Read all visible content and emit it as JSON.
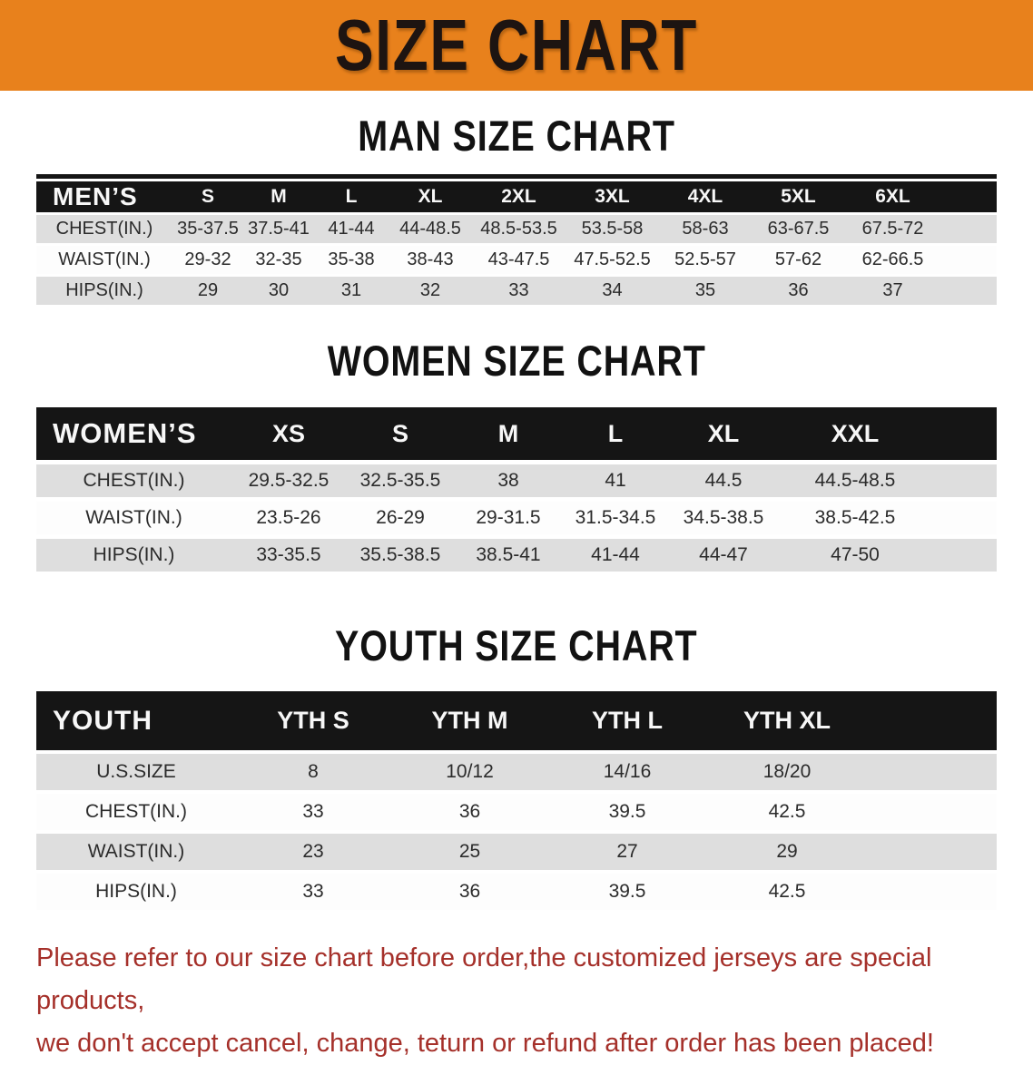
{
  "banner": {
    "title": "SIZE CHART"
  },
  "colors": {
    "banner_bg": "#E8811C",
    "table_header_bg": "#151515",
    "row_stripe_gray": "#DEDEDE",
    "disclaimer_red": "#A5302A"
  },
  "sections": [
    {
      "id": "man",
      "heading": "MAN SIZE CHART",
      "table": {
        "header_label": "MEN’S",
        "columns": [
          "S",
          "M",
          "L",
          "XL",
          "2XL",
          "3XL",
          "4XL",
          "5XL",
          "6XL"
        ],
        "rows": [
          {
            "label": "CHEST(IN.)",
            "values": [
              "35-37.5",
              "37.5-41",
              "41-44",
              "44-48.5",
              "48.5-53.5",
              "53.5-58",
              "58-63",
              "63-67.5",
              "67.5-72"
            ]
          },
          {
            "label": "WAIST(IN.)",
            "values": [
              "29-32",
              "32-35",
              "35-38",
              "38-43",
              "43-47.5",
              "47.5-52.5",
              "52.5-57",
              "57-62",
              "62-66.5"
            ]
          },
          {
            "label": "HIPS(IN.)",
            "values": [
              "29",
              "30",
              "31",
              "32",
              "33",
              "34",
              "35",
              "36",
              "37"
            ]
          }
        ]
      }
    },
    {
      "id": "women",
      "heading": "WOMEN SIZE CHART",
      "table": {
        "header_label": "WOMEN’S",
        "columns": [
          "XS",
          "S",
          "M",
          "L",
          "XL",
          "XXL"
        ],
        "rows": [
          {
            "label": "CHEST(IN.)",
            "values": [
              "29.5-32.5",
              "32.5-35.5",
              "38",
              "41",
              "44.5",
              "44.5-48.5"
            ]
          },
          {
            "label": "WAIST(IN.)",
            "values": [
              "23.5-26",
              "26-29",
              "29-31.5",
              "31.5-34.5",
              "34.5-38.5",
              "38.5-42.5"
            ]
          },
          {
            "label": "HIPS(IN.)",
            "values": [
              "33-35.5",
              "35.5-38.5",
              "38.5-41",
              "41-44",
              "44-47",
              "47-50"
            ]
          }
        ]
      }
    },
    {
      "id": "youth",
      "heading": "YOUTH SIZE CHART",
      "table": {
        "header_label": "YOUTH",
        "columns": [
          "YTH S",
          "YTH M",
          "YTH L",
          "YTH XL"
        ],
        "rows": [
          {
            "label": "U.S.SIZE",
            "values": [
              "8",
              "10/12",
              "14/16",
              "18/20"
            ]
          },
          {
            "label": "CHEST(IN.)",
            "values": [
              "33",
              "36",
              "39.5",
              "42.5"
            ]
          },
          {
            "label": "WAIST(IN.)",
            "values": [
              "23",
              "25",
              "27",
              "29"
            ]
          },
          {
            "label": "HIPS(IN.)",
            "values": [
              "33",
              "36",
              "39.5",
              "42.5"
            ]
          }
        ]
      }
    }
  ],
  "disclaimer": {
    "line1": "Please refer to our size chart before order,the customized jerseys are special products,",
    "line2": "we don't accept cancel, change, teturn or refund after order has been placed!"
  }
}
